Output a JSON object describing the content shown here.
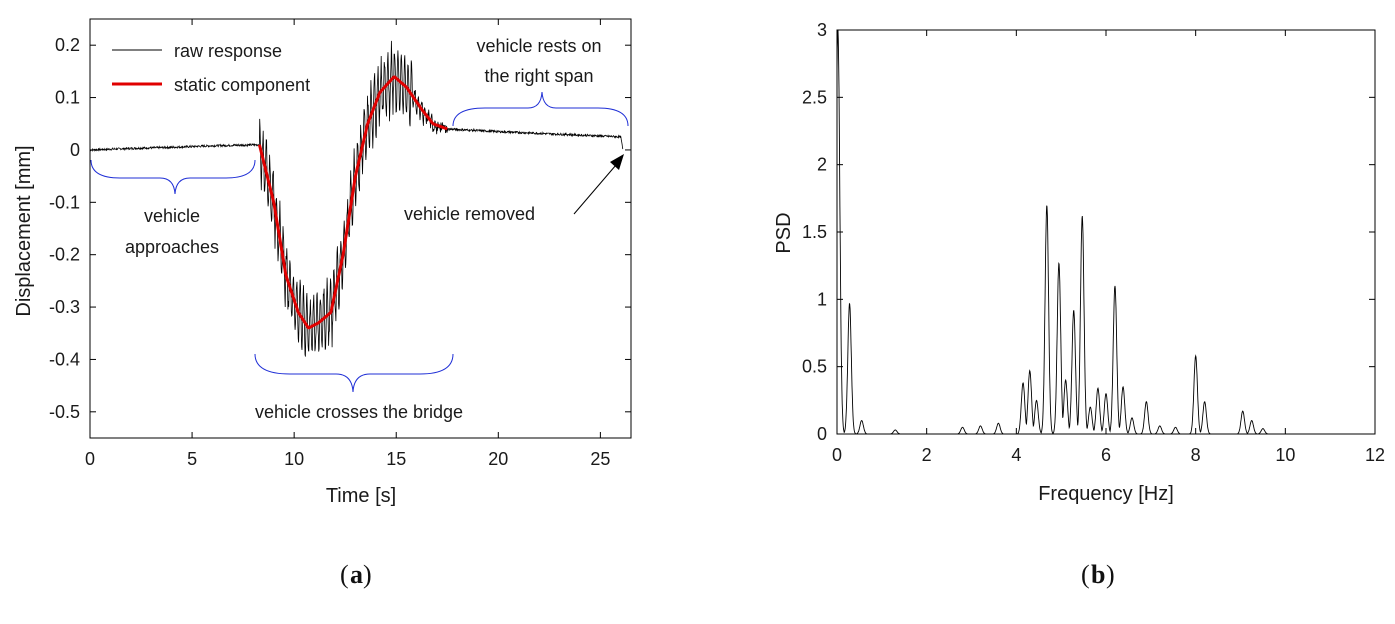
{
  "colors": {
    "raw": "#000000",
    "static": "#e00000",
    "brace": "#1f2fd6",
    "axis": "#000000"
  },
  "captions": {
    "a": "a",
    "b": "b"
  },
  "chart_data": [
    {
      "type": "line",
      "xlabel": "Time [s]",
      "ylabel": "Displacement [mm]",
      "xlim": [
        0,
        26.5
      ],
      "ylim": [
        -0.55,
        0.25
      ],
      "xticks": [
        "0",
        "5",
        "10",
        "15",
        "20",
        "25"
      ],
      "xtick_values": [
        0,
        5,
        10,
        15,
        20,
        25
      ],
      "yticks": [
        "0.2",
        "0.1",
        "0",
        "-0.1",
        "-0.2",
        "-0.3",
        "-0.4",
        "-0.5"
      ],
      "ytick_values": [
        0.2,
        0.1,
        0,
        -0.1,
        -0.2,
        -0.3,
        -0.4,
        -0.5
      ],
      "legend": [
        "raw response",
        "static component"
      ],
      "series": [
        {
          "name": "raw response",
          "x": [
            0,
            2,
            4,
            6,
            8.3,
            9,
            9.6,
            10.2,
            10.7,
            11.2,
            11.8,
            12.4,
            13,
            13.6,
            14.2,
            14.9,
            15.5,
            16.2,
            16.8,
            17.5,
            20,
            23,
            26,
            26.1
          ],
          "y": [
            0,
            0.003,
            0.005,
            0.008,
            0.01,
            -0.1,
            -0.28,
            -0.36,
            -0.4,
            -0.36,
            -0.31,
            -0.2,
            -0.05,
            0.1,
            0.18,
            0.2,
            0.12,
            0.08,
            0.05,
            0.04,
            0.035,
            0.03,
            0.025,
            0
          ]
        },
        {
          "name": "static component",
          "x": [
            8.3,
            9,
            9.6,
            10.2,
            10.7,
            11.2,
            11.8,
            12.4,
            13,
            13.6,
            14.2,
            14.9,
            15.5,
            16.2,
            16.8,
            17.5
          ],
          "y": [
            0.01,
            -0.1,
            -0.24,
            -0.31,
            -0.34,
            -0.33,
            -0.31,
            -0.2,
            -0.05,
            0.05,
            0.11,
            0.14,
            0.12,
            0.08,
            0.05,
            0.04
          ]
        }
      ],
      "annotations": {
        "approaches": [
          "vehicle",
          "approaches"
        ],
        "crosses": "vehicle crosses the bridge",
        "rests": [
          "vehicle rests on",
          "the right span"
        ],
        "removed": "vehicle removed"
      }
    },
    {
      "type": "line",
      "xlabel": "Frequency [Hz]",
      "ylabel": "PSD",
      "xlim": [
        0,
        12
      ],
      "ylim": [
        0,
        3
      ],
      "xticks": [
        "0",
        "2",
        "4",
        "6",
        "8",
        "10",
        "12"
      ],
      "xtick_values": [
        0,
        2,
        4,
        6,
        8,
        10,
        12
      ],
      "yticks": [
        "3",
        "2.5",
        "2",
        "1.5",
        "1",
        "0.5",
        "0"
      ],
      "ytick_values": [
        3,
        2.5,
        2,
        1.5,
        1,
        0.5,
        0
      ],
      "series": [
        {
          "peaks_hz": [
            0.02,
            0.28,
            0.55,
            1.3,
            2.8,
            3.2,
            3.6,
            4.15,
            4.3,
            4.45,
            4.68,
            4.95,
            5.1,
            5.28,
            5.47,
            5.65,
            5.82,
            6.0,
            6.2,
            6.38,
            6.58,
            6.9,
            7.2,
            7.55,
            8.0,
            8.2,
            9.05,
            9.25,
            9.5
          ],
          "peaks_psd": [
            3.0,
            0.97,
            0.1,
            0.03,
            0.05,
            0.06,
            0.08,
            0.38,
            0.47,
            0.25,
            1.7,
            1.27,
            0.4,
            0.92,
            1.62,
            0.2,
            0.34,
            0.3,
            1.1,
            0.35,
            0.12,
            0.24,
            0.06,
            0.05,
            0.58,
            0.24,
            0.17,
            0.1,
            0.04
          ]
        }
      ]
    }
  ]
}
